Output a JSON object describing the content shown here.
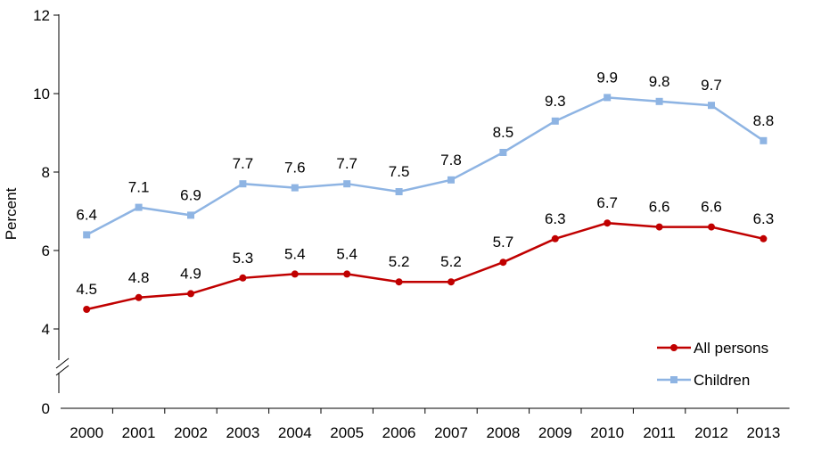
{
  "chart_data": {
    "type": "line",
    "title": "",
    "xlabel": "",
    "ylabel": "Percent",
    "x": [
      "2000",
      "2001",
      "2002",
      "2003",
      "2004",
      "2005",
      "2006",
      "2007",
      "2008",
      "2009",
      "2010",
      "2011",
      "2012",
      "2013"
    ],
    "y_ticks": [
      "0",
      "4",
      "6",
      "8",
      "10",
      "12"
    ],
    "ylim": [
      0,
      12
    ],
    "axis_break": "between 0 and 4",
    "grid": false,
    "legend_position": "bottom-right",
    "series": [
      {
        "name": "All persons",
        "color": "#C00000",
        "marker": "circle",
        "values": [
          4.5,
          4.8,
          4.9,
          5.3,
          5.4,
          5.4,
          5.2,
          5.2,
          5.7,
          6.3,
          6.7,
          6.6,
          6.6,
          6.3
        ]
      },
      {
        "name": "Children",
        "color": "#8EB4E3",
        "marker": "square",
        "values": [
          6.4,
          7.1,
          6.9,
          7.7,
          7.6,
          7.7,
          7.5,
          7.8,
          8.5,
          9.3,
          9.9,
          9.8,
          9.7,
          8.8
        ]
      }
    ]
  }
}
